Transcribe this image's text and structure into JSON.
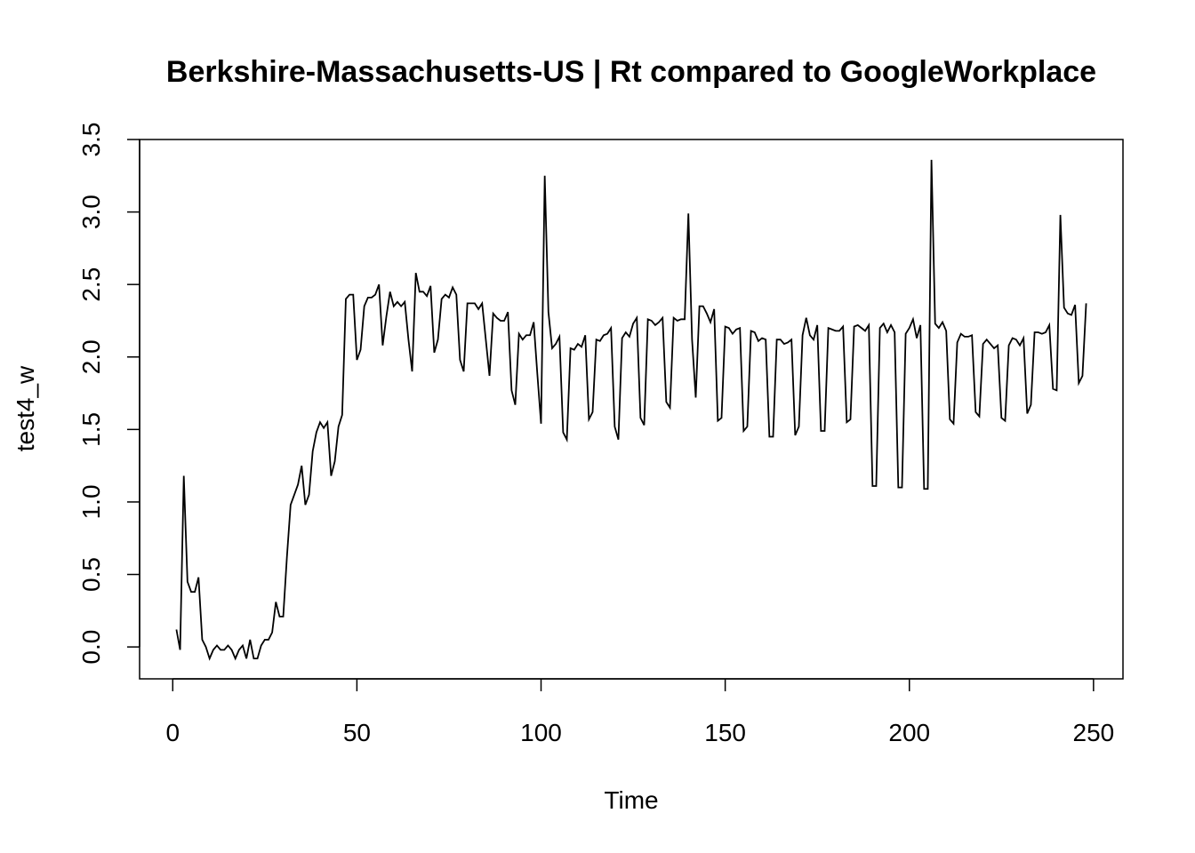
{
  "chart_data": {
    "type": "line",
    "title": "Berkshire-Massachusetts-US | Rt compared to GoogleWorkplace",
    "xlabel": "Time",
    "ylabel": "test4_w",
    "xlim": [
      -9,
      258
    ],
    "ylim": [
      -0.22,
      3.5
    ],
    "xticks": [
      0,
      50,
      100,
      150,
      200,
      250
    ],
    "xtick_labels": [
      "0",
      "50",
      "100",
      "150",
      "200",
      "250"
    ],
    "yticks": [
      0.0,
      0.5,
      1.0,
      1.5,
      2.0,
      2.5,
      3.0,
      3.5
    ],
    "ytick_labels": [
      "0.0",
      "0.5",
      "1.0",
      "1.5",
      "2.0",
      "2.5",
      "3.0",
      "3.5"
    ],
    "grid": false,
    "series": [
      {
        "line_color": "#000000",
        "x": [
          1,
          2,
          3,
          4,
          5,
          6,
          7,
          8,
          9,
          10,
          11,
          12,
          13,
          14,
          15,
          16,
          17,
          18,
          19,
          20,
          21,
          22,
          23,
          24,
          25,
          26,
          27,
          28,
          29,
          30,
          31,
          32,
          33,
          34,
          35,
          36,
          37,
          38,
          39,
          40,
          41,
          42,
          43,
          44,
          45,
          46,
          47,
          48,
          49,
          50,
          51,
          52,
          53,
          54,
          55,
          56,
          57,
          58,
          59,
          60,
          61,
          62,
          63,
          64,
          65,
          66,
          67,
          68,
          69,
          70,
          71,
          72,
          73,
          74,
          75,
          76,
          77,
          78,
          79,
          80,
          81,
          82,
          83,
          84,
          85,
          86,
          87,
          88,
          89,
          90,
          91,
          92,
          93,
          94,
          95,
          96,
          97,
          98,
          99,
          100,
          101,
          102,
          103,
          104,
          105,
          106,
          107,
          108,
          109,
          110,
          111,
          112,
          113,
          114,
          115,
          116,
          117,
          118,
          119,
          120,
          121,
          122,
          123,
          124,
          125,
          126,
          127,
          128,
          129,
          130,
          131,
          132,
          133,
          134,
          135,
          136,
          137,
          138,
          139,
          140,
          141,
          142,
          143,
          144,
          145,
          146,
          147,
          148,
          149,
          150,
          151,
          152,
          153,
          154,
          155,
          156,
          157,
          158,
          159,
          160,
          161,
          162,
          163,
          164,
          165,
          166,
          167,
          168,
          169,
          170,
          171,
          172,
          173,
          174,
          175,
          176,
          177,
          178,
          179,
          180,
          181,
          182,
          183,
          184,
          185,
          186,
          187,
          188,
          189,
          190,
          191,
          192,
          193,
          194,
          195,
          196,
          197,
          198,
          199,
          200,
          201,
          202,
          203,
          204,
          205,
          206,
          207,
          208,
          209,
          210,
          211,
          212,
          213,
          214,
          215,
          216,
          217,
          218,
          219,
          220,
          221,
          222,
          223,
          224,
          225,
          226,
          227,
          228,
          229,
          230,
          231,
          232,
          233,
          234,
          235,
          236,
          237,
          238,
          239,
          240,
          241,
          242,
          243,
          244,
          245,
          246,
          247,
          248
        ],
        "y": [
          0.12,
          -0.02,
          1.18,
          0.45,
          0.38,
          0.38,
          0.48,
          0.05,
          0.0,
          -0.08,
          -0.02,
          0.01,
          -0.02,
          -0.02,
          0.01,
          -0.02,
          -0.08,
          -0.02,
          0.01,
          -0.08,
          0.05,
          -0.08,
          -0.08,
          0.01,
          0.05,
          0.05,
          0.1,
          0.31,
          0.21,
          0.21,
          0.62,
          0.98,
          1.05,
          1.12,
          1.25,
          0.98,
          1.05,
          1.35,
          1.48,
          1.55,
          1.51,
          1.55,
          1.18,
          1.28,
          1.52,
          1.6,
          2.4,
          2.43,
          2.43,
          1.98,
          2.05,
          2.35,
          2.41,
          2.41,
          2.43,
          2.5,
          2.08,
          2.28,
          2.45,
          2.35,
          2.38,
          2.35,
          2.38,
          2.12,
          1.9,
          2.58,
          2.45,
          2.45,
          2.42,
          2.49,
          2.03,
          2.12,
          2.4,
          2.43,
          2.41,
          2.48,
          2.43,
          1.98,
          1.9,
          2.37,
          2.37,
          2.37,
          2.33,
          2.37,
          2.12,
          1.87,
          2.3,
          2.27,
          2.25,
          2.25,
          2.31,
          1.77,
          1.67,
          2.16,
          2.12,
          2.15,
          2.15,
          2.24,
          1.88,
          1.54,
          3.25,
          2.31,
          2.06,
          2.09,
          2.14,
          1.48,
          1.43,
          2.06,
          2.05,
          2.09,
          2.07,
          2.15,
          1.57,
          1.62,
          2.12,
          2.11,
          2.15,
          2.16,
          2.2,
          1.52,
          1.43,
          2.13,
          2.17,
          2.14,
          2.23,
          2.27,
          1.58,
          1.53,
          2.26,
          2.25,
          2.22,
          2.24,
          2.27,
          1.69,
          1.65,
          2.27,
          2.25,
          2.26,
          2.26,
          2.99,
          2.12,
          1.72,
          2.35,
          2.35,
          2.3,
          2.24,
          2.33,
          1.56,
          1.58,
          2.21,
          2.2,
          2.16,
          2.19,
          2.2,
          1.49,
          1.52,
          2.18,
          2.17,
          2.11,
          2.13,
          2.12,
          1.45,
          1.45,
          2.12,
          2.12,
          2.09,
          2.1,
          2.12,
          1.46,
          1.52,
          2.15,
          2.27,
          2.15,
          2.12,
          2.22,
          1.49,
          1.49,
          2.2,
          2.19,
          2.18,
          2.18,
          2.21,
          1.55,
          1.57,
          2.21,
          2.22,
          2.2,
          2.18,
          2.22,
          1.11,
          1.11,
          2.2,
          2.23,
          2.17,
          2.22,
          2.17,
          1.1,
          1.1,
          2.16,
          2.2,
          2.26,
          2.13,
          2.22,
          1.09,
          1.09,
          3.36,
          2.23,
          2.2,
          2.24,
          2.18,
          1.57,
          1.54,
          2.1,
          2.16,
          2.14,
          2.14,
          2.15,
          1.62,
          1.59,
          2.09,
          2.12,
          2.09,
          2.06,
          2.08,
          1.58,
          1.56,
          2.08,
          2.13,
          2.12,
          2.08,
          2.13,
          1.61,
          1.67,
          2.17,
          2.17,
          2.16,
          2.17,
          2.22,
          1.78,
          1.77,
          2.98,
          2.34,
          2.3,
          2.29,
          2.36,
          1.82,
          1.87,
          2.37
        ]
      }
    ]
  }
}
